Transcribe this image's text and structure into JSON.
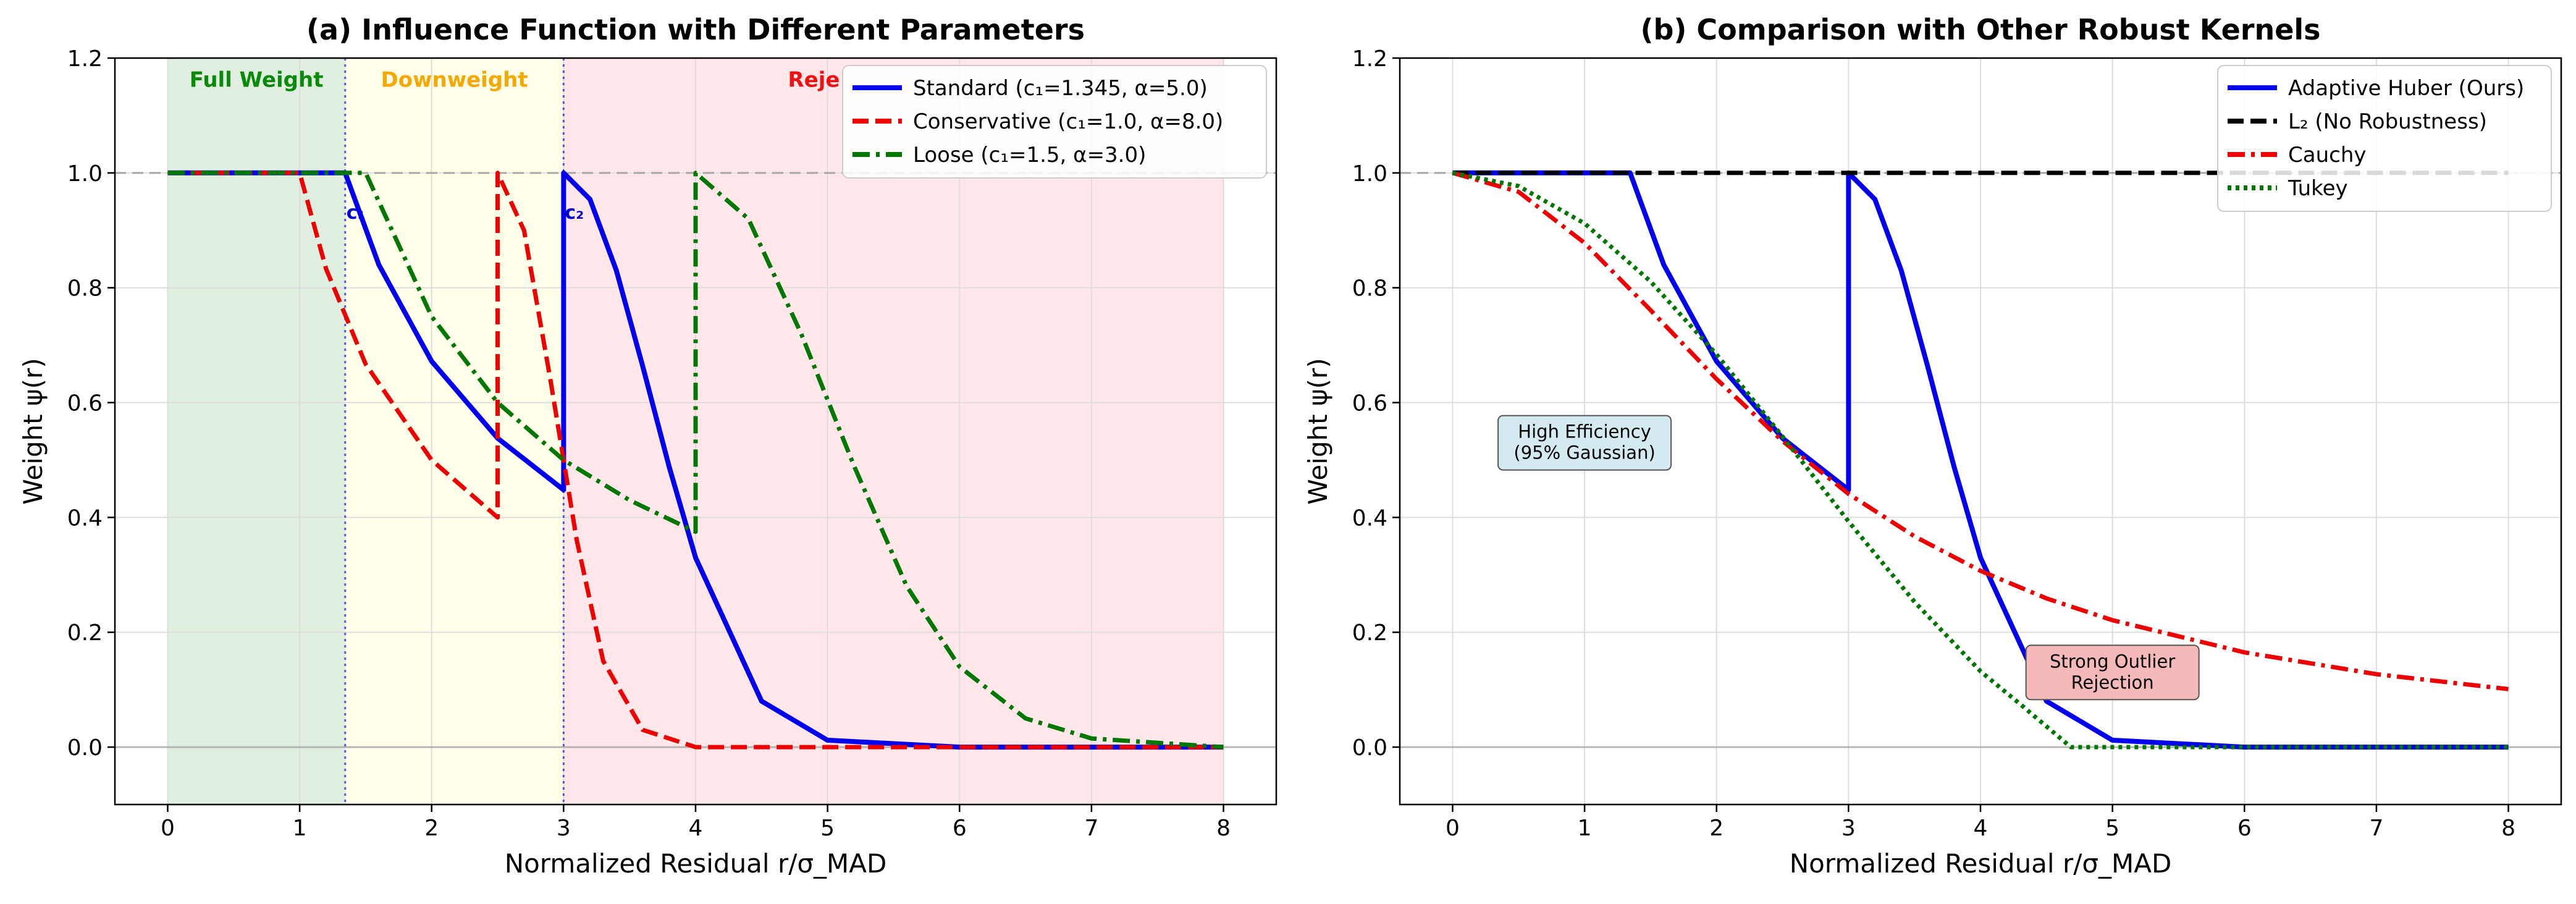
{
  "chart_data": [
    {
      "type": "line",
      "title": "(a) Influence Function with Different Parameters",
      "xlabel": "Normalized Residual r/σ_MAD",
      "ylabel": "Weight ψ(r)",
      "xlim": [
        -0.4,
        8.4
      ],
      "ylim": [
        -0.1,
        1.2
      ],
      "x_ticks": [
        "0",
        "1",
        "2",
        "3",
        "4",
        "5",
        "6",
        "7",
        "8"
      ],
      "y_ticks": [
        "0.0",
        "0.2",
        "0.4",
        "0.6",
        "0.8",
        "1.0",
        "1.2"
      ],
      "grid": true,
      "legend_position": "top-right",
      "regions": [
        {
          "label": "Full Weight",
          "from": 0,
          "to": 1.345,
          "color": "#c9e2c9",
          "label_color": "#0a8a0a"
        },
        {
          "label": "Downweight",
          "from": 1.345,
          "to": 3.0,
          "color": "#ffffd8",
          "label_color": "#f5a800"
        },
        {
          "label": "Reje",
          "from": 3.0,
          "to": 8.0,
          "color": "#ffd4d8",
          "label_color": "#ee1111"
        }
      ],
      "threshold_labels": [
        {
          "text": "c₁",
          "x": 1.345
        },
        {
          "text": "c₂",
          "x": 3.0
        }
      ],
      "reference_line": {
        "y": 1.0
      },
      "series": [
        {
          "name": "Standard (c₁=1.345, α=5.0)",
          "color": "#0000ee",
          "dash": "solid",
          "x": [
            0,
            1.345,
            1.6,
            2.0,
            2.5,
            3.0,
            3.0,
            3.2,
            3.4,
            3.6,
            3.8,
            4.0,
            4.5,
            5.0,
            6.0,
            8.0
          ],
          "y": [
            1.0,
            1.0,
            0.84,
            0.672,
            0.538,
            0.448,
            1.0,
            0.954,
            0.83,
            0.663,
            0.488,
            0.33,
            0.08,
            0.012,
            0.0,
            0.0
          ]
        },
        {
          "name": "Conservative (c₁=1.0, α=8.0)",
          "color": "#ee0000",
          "dash": "dashed",
          "x": [
            0,
            1.0,
            1.2,
            1.5,
            2.0,
            2.5,
            2.5,
            2.7,
            2.9,
            3.1,
            3.3,
            3.6,
            4.0,
            8.0
          ],
          "y": [
            1.0,
            1.0,
            0.833,
            0.667,
            0.5,
            0.4,
            1.0,
            0.9,
            0.64,
            0.36,
            0.15,
            0.03,
            0.0,
            0.0
          ]
        },
        {
          "name": "Loose (c₁=1.5, α=3.0)",
          "color": "#007700",
          "dash": "dashdot",
          "x": [
            0,
            1.5,
            2.0,
            2.5,
            3.0,
            3.5,
            4.0,
            4.0,
            4.4,
            4.8,
            5.2,
            5.6,
            6.0,
            6.5,
            7.0,
            8.0
          ],
          "y": [
            1.0,
            1.0,
            0.75,
            0.6,
            0.5,
            0.43,
            0.375,
            1.0,
            0.92,
            0.72,
            0.49,
            0.28,
            0.14,
            0.05,
            0.015,
            0.0
          ]
        }
      ]
    },
    {
      "type": "line",
      "title": "(b) Comparison with Other Robust Kernels",
      "xlabel": "Normalized Residual r/σ_MAD",
      "ylabel": "Weight ψ(r)",
      "xlim": [
        -0.4,
        8.4
      ],
      "ylim": [
        -0.1,
        1.2
      ],
      "x_ticks": [
        "0",
        "1",
        "2",
        "3",
        "4",
        "5",
        "6",
        "7",
        "8"
      ],
      "y_ticks": [
        "0.0",
        "0.2",
        "0.4",
        "0.6",
        "0.8",
        "1.0",
        "1.2"
      ],
      "grid": true,
      "legend_position": "top-right",
      "reference_line": {
        "y": 1.0
      },
      "annotations": [
        {
          "text": [
            "High Efficiency",
            "(95% Gaussian)"
          ],
          "x": 1.0,
          "y": 0.53,
          "bg": "#d3ebf0"
        },
        {
          "text": [
            "Strong Outlier",
            "Rejection"
          ],
          "x": 5.0,
          "y": 0.13,
          "bg": "#f5b9b9"
        }
      ],
      "series": [
        {
          "name": "Adaptive Huber (Ours)",
          "color": "#0000ee",
          "dash": "solid",
          "x": [
            0,
            1.345,
            1.6,
            2.0,
            2.5,
            3.0,
            3.0,
            3.2,
            3.4,
            3.6,
            3.8,
            4.0,
            4.5,
            5.0,
            6.0,
            8.0
          ],
          "y": [
            1.0,
            1.0,
            0.84,
            0.672,
            0.538,
            0.448,
            1.0,
            0.954,
            0.83,
            0.663,
            0.488,
            0.33,
            0.08,
            0.012,
            0.0,
            0.0
          ]
        },
        {
          "name": "L₂ (No Robustness)",
          "color": "#000000",
          "dash": "dashed",
          "x": [
            0,
            8.0
          ],
          "y": [
            1.0,
            1.0
          ]
        },
        {
          "name": "Cauchy",
          "color": "#ee0000",
          "dash": "dashdot",
          "x": [
            0,
            0.5,
            1.0,
            1.5,
            2.0,
            2.5,
            3.0,
            3.5,
            4.0,
            4.5,
            5.0,
            6.0,
            7.0,
            8.0
          ],
          "y": [
            1.0,
            0.967,
            0.878,
            0.761,
            0.641,
            0.533,
            0.441,
            0.367,
            0.307,
            0.259,
            0.221,
            0.165,
            0.127,
            0.101
          ]
        },
        {
          "name": "Tukey",
          "color": "#007700",
          "dash": "dotted",
          "x": [
            0,
            0.5,
            1.0,
            1.5,
            2.0,
            2.5,
            3.0,
            3.5,
            4.0,
            4.3,
            4.685,
            5.0,
            8.0
          ],
          "y": [
            1.0,
            0.977,
            0.912,
            0.811,
            0.684,
            0.541,
            0.393,
            0.253,
            0.132,
            0.075,
            0.0,
            0.0,
            0.0
          ]
        }
      ]
    }
  ]
}
